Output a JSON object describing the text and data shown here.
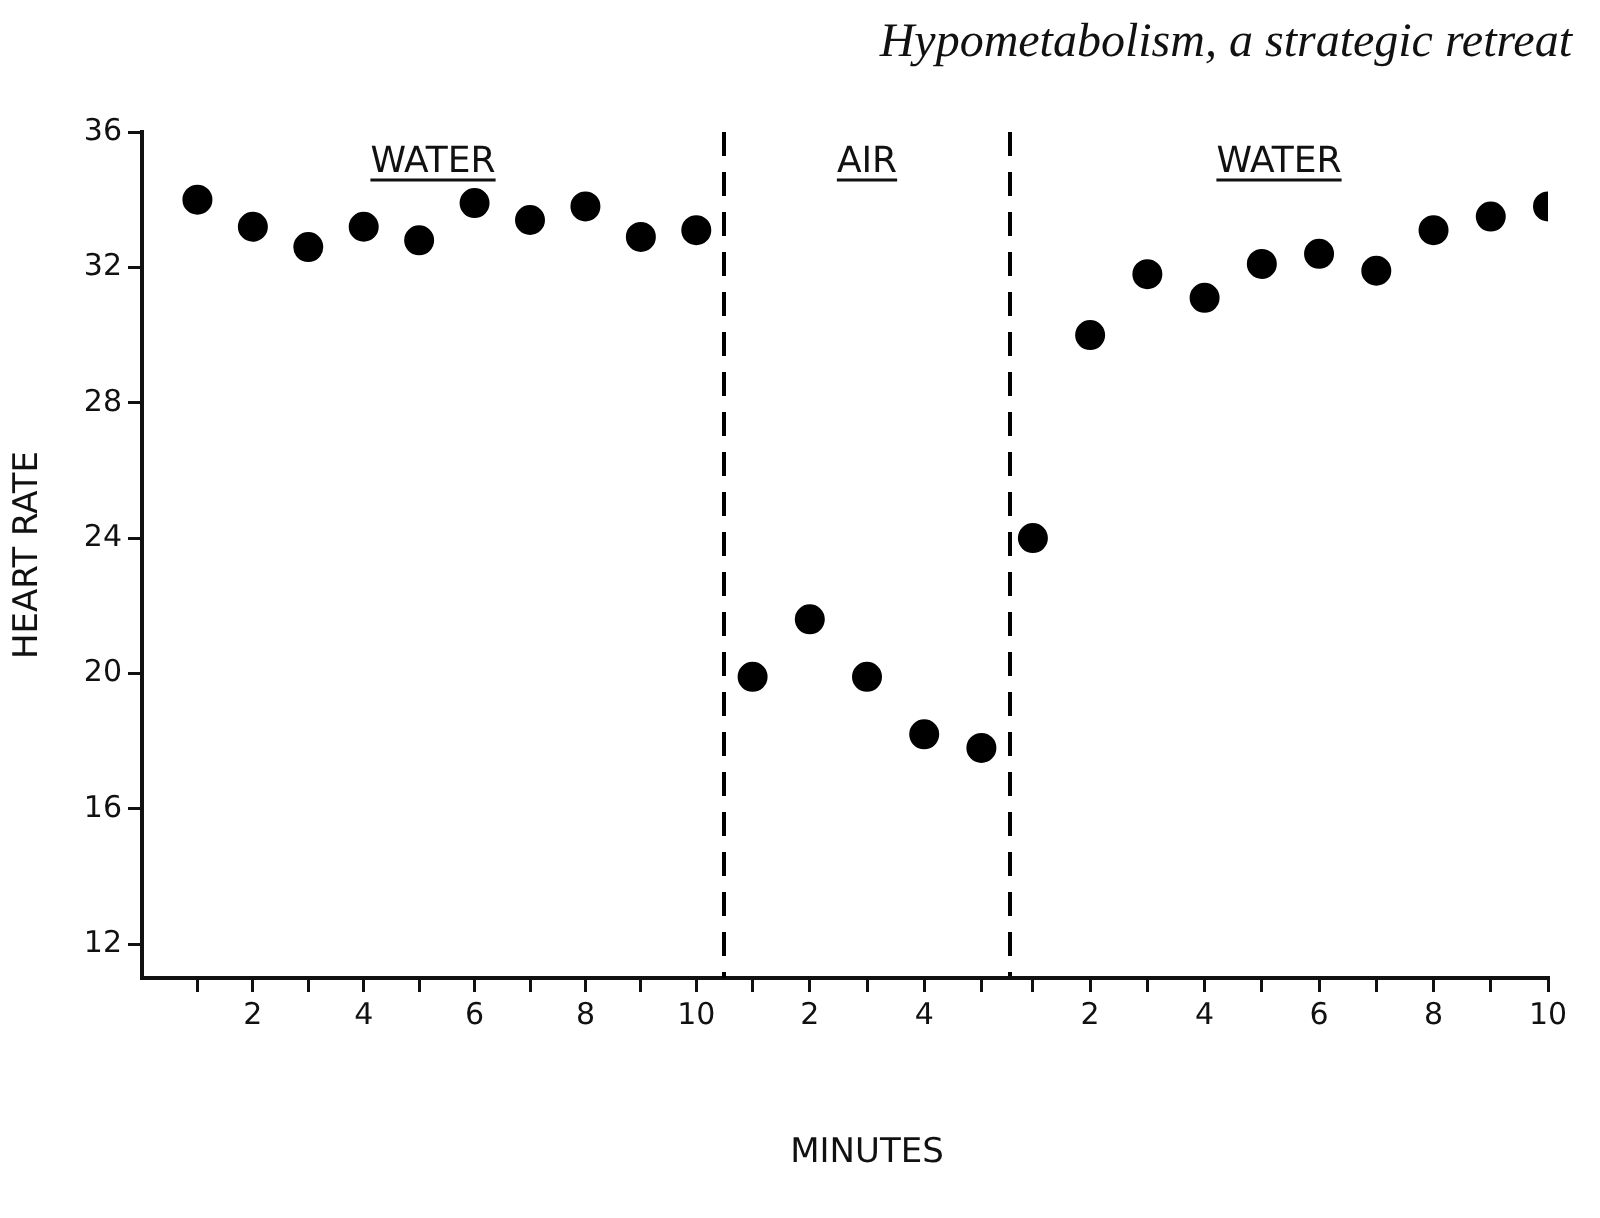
{
  "chart_data": [
    {
      "type": "scatter",
      "ylabel": "HEART RATE",
      "x": [
        1,
        2,
        3,
        4,
        5,
        6,
        7,
        8,
        9,
        10
      ],
      "series": [
        {
          "color": "#000000",
          "values": [
            34.0,
            33.2,
            32.6,
            33.2,
            32.8,
            33.9,
            33.4,
            33.8,
            32.9,
            33.1
          ]
        }
      ],
      "xlim": [
        0,
        10.5
      ],
      "xticks": [
        {
          "value": 1,
          "label": null
        },
        2,
        {
          "value": 3,
          "label": null
        },
        4,
        {
          "value": 5,
          "label": null
        },
        6,
        {
          "value": 7,
          "label": null
        },
        8,
        {
          "value": 9,
          "label": null
        },
        10
      ],
      "ylim": [
        11,
        36
      ],
      "yticks": [
        12,
        16,
        20,
        24,
        28,
        32,
        36
      ],
      "annotations": [
        "WATER"
      ],
      "marker": "circle",
      "grid": false,
      "legend": false
    },
    {
      "type": "scatter",
      "xlabel": "MINUTES",
      "x": [
        1,
        2,
        3,
        4,
        5
      ],
      "series": [
        {
          "color": "#000000",
          "values": [
            19.9,
            21.6,
            19.9,
            18.2,
            17.8
          ]
        }
      ],
      "xlim": [
        0.5,
        5.5
      ],
      "xticks": [
        {
          "value": 1,
          "label": null
        },
        2,
        {
          "value": 3,
          "label": null
        },
        4,
        {
          "value": 5,
          "label": null
        }
      ],
      "ylim": [
        11,
        36
      ],
      "yticks": [
        12,
        16,
        20,
        24,
        28,
        32,
        36
      ],
      "ref_lines": [
        {
          "axis": "x",
          "value": 0.5,
          "line_style": "dashed"
        },
        {
          "axis": "x",
          "value": 5.5,
          "line_style": "dashed"
        }
      ],
      "annotations": [
        "AIR"
      ],
      "tick_labels": "x",
      "marker": "circle",
      "grid": false,
      "legend": false
    },
    {
      "type": "scatter",
      "title": "Hypometabolism, a strategic retreat",
      "x": [
        1,
        2,
        3,
        4,
        5,
        6,
        7,
        8,
        9,
        10
      ],
      "series": [
        {
          "color": "#000000",
          "values": [
            24.0,
            30.0,
            31.8,
            31.1,
            32.1,
            32.4,
            31.9,
            33.1,
            33.5,
            33.8
          ]
        }
      ],
      "xlim": [
        0.6,
        10
      ],
      "xticks": [
        {
          "value": 1,
          "label": null
        },
        2,
        {
          "value": 3,
          "label": null
        },
        4,
        {
          "value": 5,
          "label": null
        },
        6,
        {
          "value": 7,
          "label": null
        },
        8,
        {
          "value": 9,
          "label": null
        },
        10
      ],
      "ylim": [
        11,
        36
      ],
      "yticks": [
        12,
        16,
        20,
        24,
        28,
        32,
        36
      ],
      "annotations": [
        "WATER"
      ],
      "tick_labels": "x",
      "marker": "circle",
      "grid": false,
      "legend": false
    }
  ]
}
